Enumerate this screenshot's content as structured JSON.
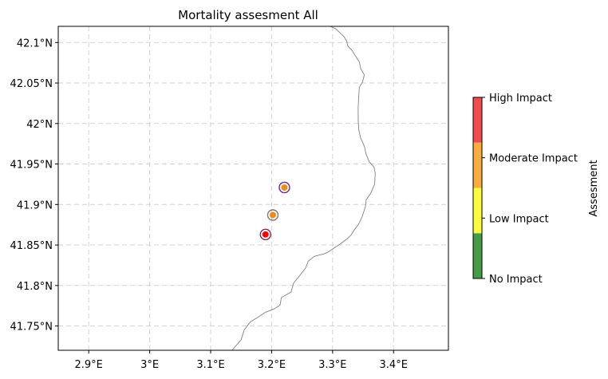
{
  "chart_data": {
    "type": "scatter",
    "title": "Mortality assesment All",
    "xlim": [
      2.85,
      3.49
    ],
    "ylim": [
      41.72,
      42.12
    ],
    "x_ticks": [
      {
        "value": 2.9,
        "label": "2.9°E"
      },
      {
        "value": 3.0,
        "label": "3°E"
      },
      {
        "value": 3.1,
        "label": "3.1°E"
      },
      {
        "value": 3.2,
        "label": "3.2°E"
      },
      {
        "value": 3.3,
        "label": "3.3°E"
      },
      {
        "value": 3.4,
        "label": "3.4°E"
      }
    ],
    "y_ticks": [
      {
        "value": 41.75,
        "label": "41.75°N"
      },
      {
        "value": 41.8,
        "label": "41.8°N"
      },
      {
        "value": 41.85,
        "label": "41.85°N"
      },
      {
        "value": 41.9,
        "label": "41.9°N"
      },
      {
        "value": 41.95,
        "label": "41.95°N"
      },
      {
        "value": 42.0,
        "label": "42°N"
      },
      {
        "value": 42.05,
        "label": "42.05°N"
      },
      {
        "value": 42.1,
        "label": "42.1°N"
      }
    ],
    "grid": true,
    "coastline_color": "#808080",
    "coastline": [
      [
        3.135,
        41.72
      ],
      [
        3.15,
        41.733
      ],
      [
        3.155,
        41.745
      ],
      [
        3.165,
        41.755
      ],
      [
        3.178,
        41.761
      ],
      [
        3.19,
        41.767
      ],
      [
        3.204,
        41.771
      ],
      [
        3.214,
        41.776
      ],
      [
        3.216,
        41.785
      ],
      [
        3.232,
        41.792
      ],
      [
        3.236,
        41.803
      ],
      [
        3.248,
        41.814
      ],
      [
        3.256,
        41.822
      ],
      [
        3.26,
        41.83
      ],
      [
        3.27,
        41.836
      ],
      [
        3.286,
        41.839
      ],
      [
        3.292,
        41.841
      ],
      [
        3.3,
        41.845
      ],
      [
        3.312,
        41.851
      ],
      [
        3.323,
        41.857
      ],
      [
        3.33,
        41.862
      ],
      [
        3.335,
        41.868
      ],
      [
        3.343,
        41.876
      ],
      [
        3.349,
        41.886
      ],
      [
        3.354,
        41.898
      ],
      [
        3.355,
        41.906
      ],
      [
        3.362,
        41.913
      ],
      [
        3.369,
        41.925
      ],
      [
        3.37,
        41.938
      ],
      [
        3.368,
        41.946
      ],
      [
        3.36,
        41.953
      ],
      [
        3.355,
        41.962
      ],
      [
        3.352,
        41.972
      ],
      [
        3.346,
        41.982
      ],
      [
        3.343,
        41.992
      ],
      [
        3.342,
        42.005
      ],
      [
        3.342,
        42.02
      ],
      [
        3.343,
        42.035
      ],
      [
        3.344,
        42.045
      ],
      [
        3.349,
        42.051
      ],
      [
        3.352,
        42.06
      ],
      [
        3.346,
        42.068
      ],
      [
        3.344,
        42.076
      ],
      [
        3.337,
        42.084
      ],
      [
        3.332,
        42.09
      ],
      [
        3.325,
        42.096
      ],
      [
        3.323,
        42.102
      ],
      [
        3.319,
        42.107
      ],
      [
        3.312,
        42.112
      ],
      [
        3.305,
        42.117
      ],
      [
        3.296,
        42.12
      ]
    ],
    "points": [
      {
        "lon": 3.221,
        "lat": 41.921,
        "assessment": "High Impact",
        "fill": "#f08a1a",
        "edge": "#6a2a8a"
      },
      {
        "lon": 3.202,
        "lat": 41.887,
        "assessment": "Moderate Impact",
        "fill": "#f08a1a",
        "edge": "#777777"
      },
      {
        "lon": 3.19,
        "lat": 41.863,
        "assessment": "High Impact",
        "fill": "#ff0000",
        "edge": "#8a2a4a"
      }
    ],
    "colorbar": {
      "label": "Assesment",
      "categories": [
        {
          "label": "No Impact",
          "color": "#469c46"
        },
        {
          "label": "Low Impact",
          "color": "#fcfc3e"
        },
        {
          "label": "Moderate Impact",
          "color": "#f9ac40"
        },
        {
          "label": "High Impact",
          "color": "#f24b4b"
        }
      ]
    }
  }
}
